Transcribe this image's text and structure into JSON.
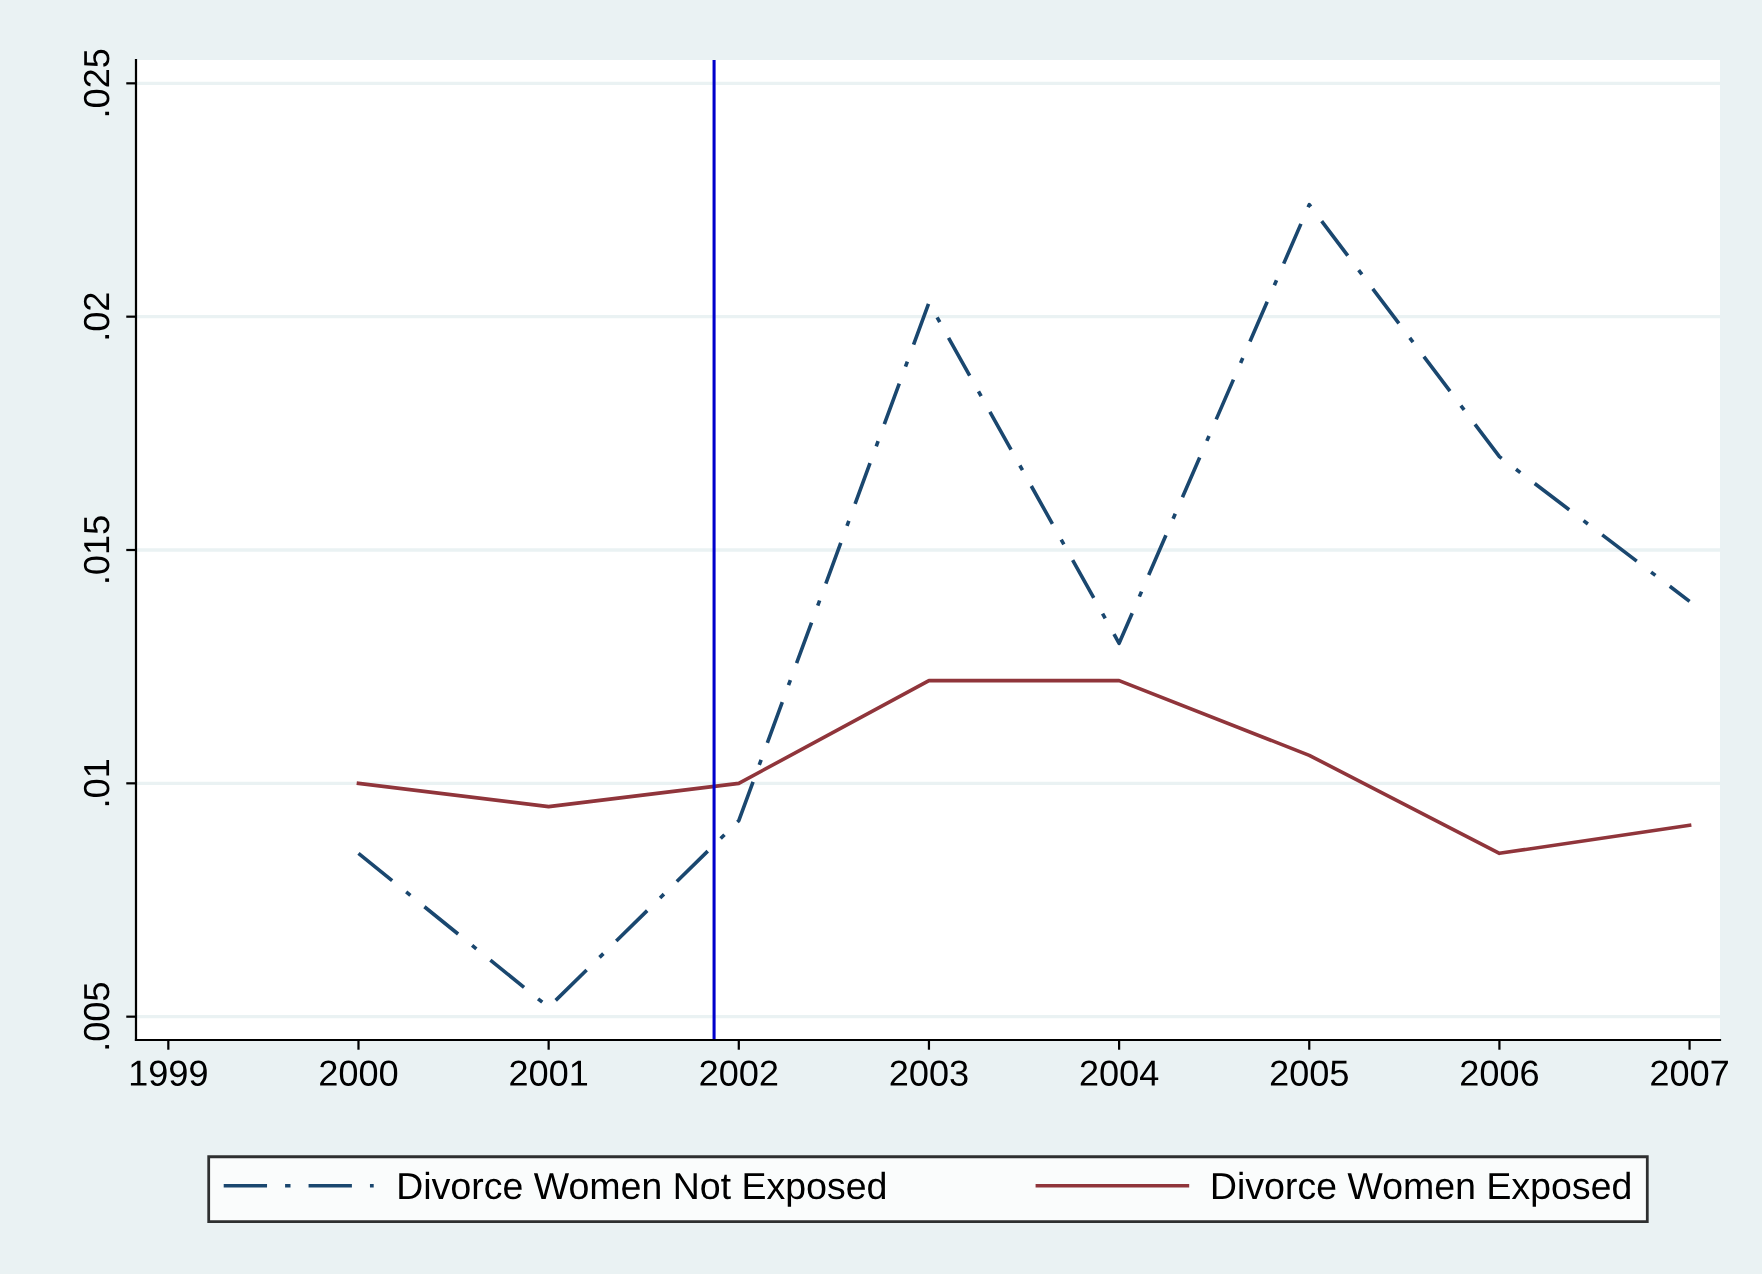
{
  "chart_data": {
    "type": "line",
    "x": [
      2000,
      2001,
      2002,
      2003,
      2004,
      2005,
      2006,
      2007
    ],
    "series": [
      {
        "name": "Divorce Women Not Exposed",
        "color": "#1a476f",
        "line_style": "dashdot",
        "values": [
          0.0085,
          0.0052,
          0.0092,
          0.0203,
          0.013,
          0.0224,
          0.017,
          0.0139
        ]
      },
      {
        "name": "Divorce Women Exposed",
        "color": "#90353b",
        "line_style": "solid",
        "values": [
          0.01,
          0.0095,
          0.01,
          0.0122,
          0.0122,
          0.0106,
          0.0085,
          0.0091
        ]
      }
    ],
    "xlim": [
      1998.83,
      2007.16
    ],
    "xticks": [
      1999,
      2000,
      2001,
      2002,
      2003,
      2004,
      2005,
      2006,
      2007
    ],
    "ylim": [
      0.0045,
      0.0255
    ],
    "yticks": [
      {
        "value": 0.005,
        "label": ".005"
      },
      {
        "value": 0.01,
        "label": ".01"
      },
      {
        "value": 0.015,
        "label": ".015"
      },
      {
        "value": 0.02,
        "label": ".02"
      },
      {
        "value": 0.025,
        "label": ".025"
      }
    ],
    "ref_lines": [
      {
        "axis": "x",
        "value": 2001.87,
        "color": "#0000cc"
      }
    ],
    "grid": "y",
    "legend": "bottom",
    "marker": "none"
  }
}
